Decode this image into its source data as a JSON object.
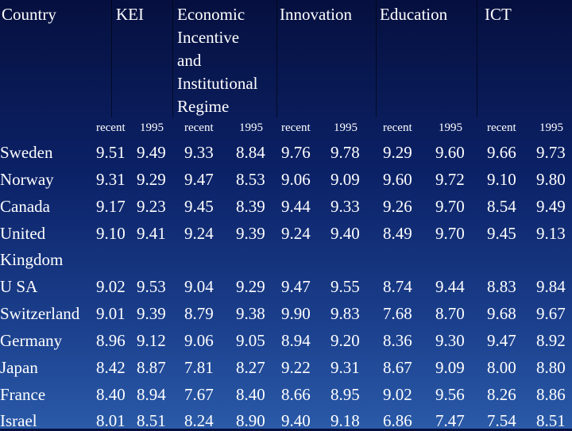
{
  "headers": {
    "country": "Country",
    "kei": "KEI",
    "econ": [
      "Economic",
      "Incentive",
      "and",
      "Institutional",
      "Regime"
    ],
    "innovation": "Innovation",
    "education": "Education",
    "ict": "ICT"
  },
  "subheaders": [
    "recent",
    "1995",
    "recent",
    "1995",
    "recent",
    "1995",
    "recent",
    "1995",
    "recent",
    "1995"
  ],
  "rows": [
    {
      "country": [
        "Sweden"
      ],
      "values": [
        "9.51",
        "9.49",
        "9.33",
        "8.84",
        "9.76",
        "9.78",
        "9.29",
        "9.60",
        "9.66",
        "9.73"
      ]
    },
    {
      "country": [
        "Norway"
      ],
      "values": [
        "9.31",
        "9.29",
        "9.47",
        "8.53",
        "9.06",
        "9.09",
        "9.60",
        "9.72",
        "9.10",
        "9.80"
      ]
    },
    {
      "country": [
        "Canada"
      ],
      "values": [
        "9.17",
        "9.23",
        "9.45",
        "8.39",
        "9.44",
        "9.33",
        "9.26",
        "9.70",
        "8.54",
        "9.49"
      ]
    },
    {
      "country": [
        "United",
        "Kingdom"
      ],
      "values": [
        "9.10",
        "9.41",
        "9.24",
        "9.39",
        "9.24",
        "9.40",
        "8.49",
        "9.70",
        "9.45",
        "9.13"
      ]
    },
    {
      "country": [
        "U SA"
      ],
      "values": [
        "9.02",
        "9.53",
        "9.04",
        "9.29",
        "9.47",
        "9.55",
        "8.74",
        "9.44",
        "8.83",
        "9.84"
      ]
    },
    {
      "country": [
        "Switzerland"
      ],
      "values": [
        "9.01",
        "9.39",
        "8.79",
        "9.38",
        "9.90",
        "9.83",
        "7.68",
        "8.70",
        "9.68",
        "9.67"
      ]
    },
    {
      "country": [
        "Germany"
      ],
      "values": [
        "8.96",
        "9.12",
        "9.06",
        "9.05",
        "8.94",
        "9.20",
        "8.36",
        "9.30",
        "9.47",
        "8.92"
      ]
    },
    {
      "country": [
        "Japan"
      ],
      "values": [
        "8.42",
        "8.87",
        "7.81",
        "8.27",
        "9.22",
        "9.31",
        "8.67",
        "9.09",
        "8.00",
        "8.80"
      ]
    },
    {
      "country": [
        "France"
      ],
      "values": [
        "8.40",
        "8.94",
        "7.67",
        "8.40",
        "8.66",
        "8.95",
        "9.02",
        "9.56",
        "8.26",
        "8.86"
      ]
    },
    {
      "country": [
        "Israel"
      ],
      "values": [
        "8.01",
        "8.51",
        "8.24",
        "8.90",
        "9.40",
        "9.18",
        "6.86",
        "7.47",
        "7.54",
        "8.51"
      ]
    }
  ]
}
